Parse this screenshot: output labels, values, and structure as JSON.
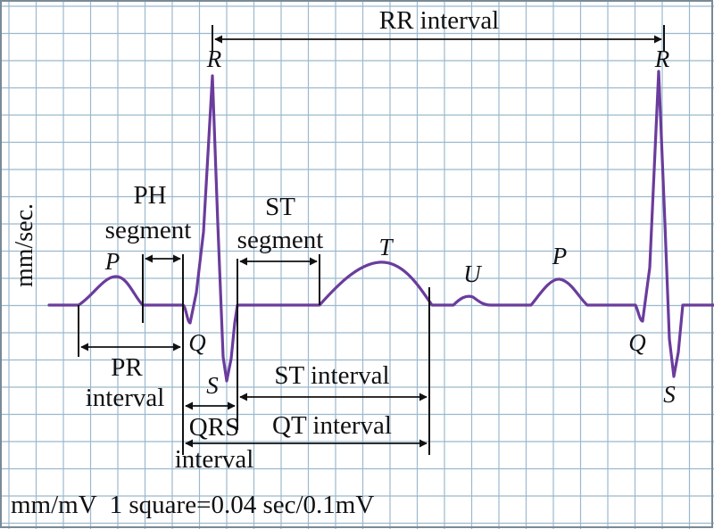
{
  "colors": {
    "background": "#ffffff",
    "grid": "#9bb9ce",
    "trace": "#6a3c9c",
    "annotation": "#111111"
  },
  "labels": {
    "rr_interval": "RR interval",
    "ph_segment_line1": "PH",
    "ph_segment_line2": "segment",
    "st_segment_line1": "ST",
    "st_segment_line2": "segment",
    "pr_interval_line1": "PR",
    "pr_interval_line2": "interval",
    "st_interval": "ST interval",
    "qrs_interval_line1": "QRS",
    "qrs_interval_line2": "interval",
    "qt_interval": "QT interval",
    "axis_unit": "mm/sec."
  },
  "waves": {
    "p1": "P",
    "r1": "R",
    "q1": "Q",
    "s1": "S",
    "t": "T",
    "u": "U",
    "p2": "P",
    "r2": "R",
    "q2": "Q",
    "s2": "S"
  },
  "footer": "mm/mV  1 square=0.04 sec/0.1mV"
}
